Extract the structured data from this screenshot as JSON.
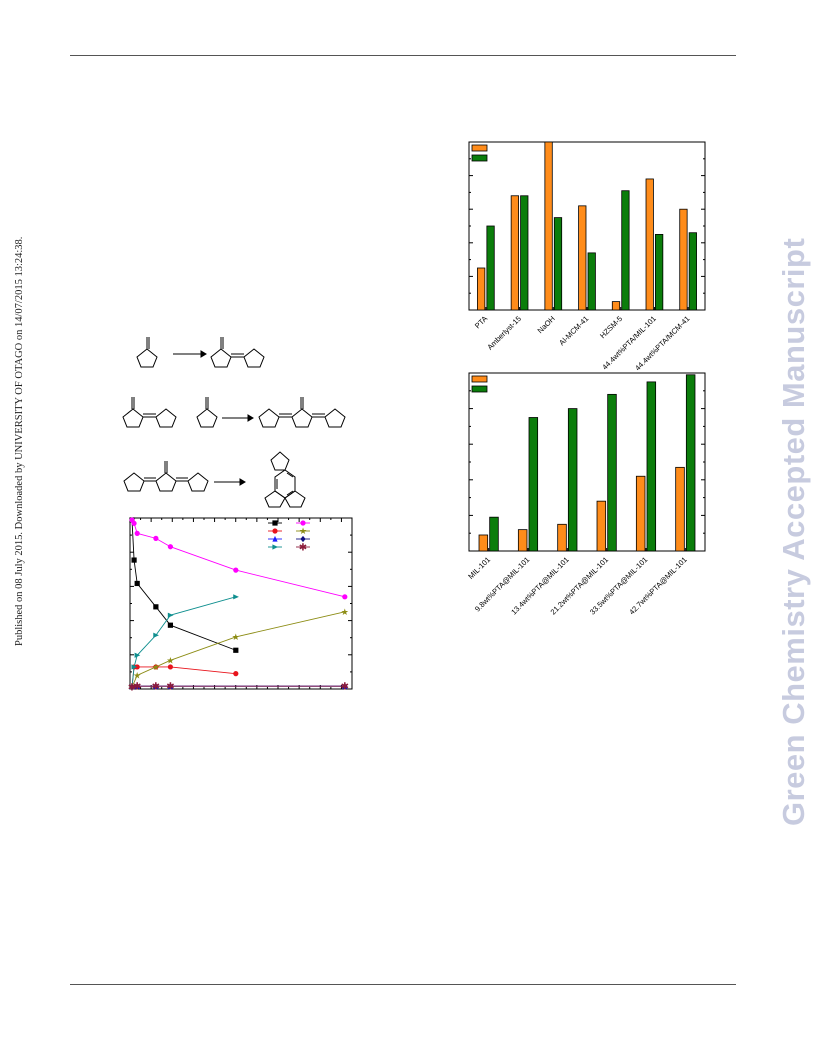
{
  "sidebar_note": "Published on 08 July 2015. Downloaded by UNIVERSITY OF OTAGO on 14/07/2015 13:24:38.",
  "watermark": "Green Chemistry Accepted Manuscript",
  "colors": {
    "orange": "#ff8c1a",
    "green": "#0b7d0b",
    "black": "#000000",
    "magenta": "#ff00ff",
    "red": "#e8141c",
    "olive": "#8c8c14",
    "blue": "#1c1cff",
    "navy": "#101080",
    "teal": "#0f8f8f",
    "wine": "#8c1c3c"
  },
  "chart_data": [
    {
      "type": "bar",
      "categories": [
        "PTA",
        "Amberlyst-15",
        "NaOH",
        "Al-MCM-41",
        "HZSM-5",
        "44.4wt%PTA/MIL-101",
        "44.4wt%PTA/MCM-41"
      ],
      "series": [
        {
          "values": [
            25,
            68,
            100,
            62,
            5,
            78,
            60
          ]
        },
        {
          "values": [
            50,
            68,
            55,
            34,
            71,
            45,
            46
          ]
        }
      ],
      "ylim": [
        0,
        100
      ],
      "legend": "top-left",
      "grid": false
    },
    {
      "type": "bar",
      "categories": [
        "MIL-101",
        "9.8wt%PTA@MIL-101",
        "13.4wt%PTA@MIL-101",
        "21.2wt%PTA@MIL-101",
        "33.5wt%PTA@MIL-101",
        "42.7wt%PTA@MIL-101"
      ],
      "series": [
        {
          "values": [
            9,
            12,
            15,
            28,
            42,
            47
          ]
        },
        {
          "values": [
            19,
            75,
            80,
            88,
            95,
            99
          ]
        }
      ],
      "ylim": [
        0,
        100
      ],
      "legend": "top-left",
      "grid": false
    },
    {
      "type": "line",
      "legend": "top-right",
      "grid": false,
      "ylim": [
        0,
        100
      ],
      "xlim": [
        0,
        21
      ],
      "series": [
        {
          "marker": "square",
          "color": "black",
          "points": [
            [
              0,
              100
            ],
            [
              0.2,
              76
            ],
            [
              0.5,
              62
            ],
            [
              2.3,
              48
            ],
            [
              3.7,
              37
            ],
            [
              10,
              22
            ]
          ]
        },
        {
          "marker": "circle",
          "color": "red",
          "points": [
            [
              0,
              0
            ],
            [
              0.2,
              12
            ],
            [
              0.5,
              12
            ],
            [
              2.3,
              12
            ],
            [
              3.7,
              12
            ],
            [
              10,
              8
            ]
          ]
        },
        {
          "marker": "triangle-up",
          "color": "blue",
          "points": [
            [
              0,
              0
            ],
            [
              0.5,
              0.5
            ],
            [
              2.3,
              0.5
            ],
            [
              3.7,
              0.5
            ],
            [
              20.5,
              0.5
            ]
          ]
        },
        {
          "marker": "triangle-right",
          "color": "teal",
          "points": [
            [
              0,
              0
            ],
            [
              0.2,
              12
            ],
            [
              0.5,
              19
            ],
            [
              2.3,
              31
            ],
            [
              3.7,
              43
            ],
            [
              10,
              54
            ]
          ]
        },
        {
          "marker": "circle",
          "color": "magenta",
          "points": [
            [
              0,
              100
            ],
            [
              0.2,
              98
            ],
            [
              0.5,
              92
            ],
            [
              2.3,
              89
            ],
            [
              3.7,
              84
            ],
            [
              10,
              70
            ],
            [
              20.5,
              54
            ]
          ]
        },
        {
          "marker": "star",
          "color": "olive",
          "points": [
            [
              0,
              0
            ],
            [
              0.5,
              7
            ],
            [
              2.3,
              12
            ],
            [
              3.7,
              16
            ],
            [
              10,
              30
            ],
            [
              20.5,
              45
            ]
          ]
        },
        {
          "marker": "diamond",
          "color": "navy",
          "points": [
            [
              0,
              0
            ],
            [
              0.5,
              0.5
            ],
            [
              2.3,
              0.5
            ],
            [
              3.7,
              0.5
            ],
            [
              20.5,
              0.5
            ]
          ]
        },
        {
          "marker": "asterisk",
          "color": "wine",
          "points": [
            [
              0,
              0
            ],
            [
              0.5,
              0.5
            ],
            [
              2.3,
              0.5
            ],
            [
              3.7,
              0.5
            ],
            [
              20.5,
              0.5
            ]
          ]
        }
      ]
    }
  ]
}
